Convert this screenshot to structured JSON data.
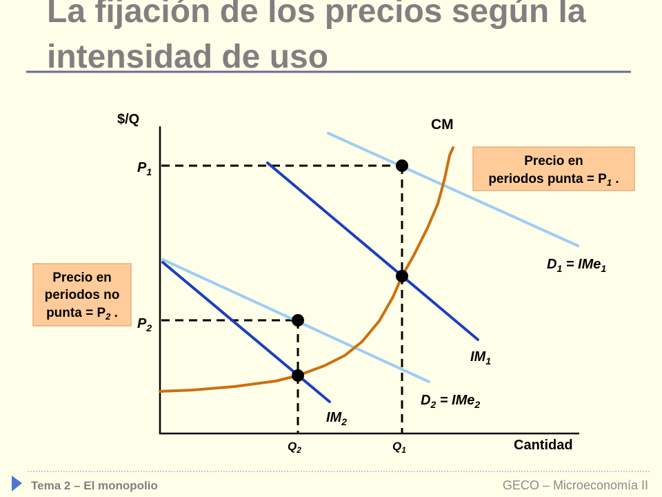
{
  "title": {
    "line1": "La fijación de los precios según la",
    "line2": "intensidad de uso"
  },
  "axes": {
    "y_label": "$/Q",
    "x_label": "Cantidad"
  },
  "prices": {
    "p1": {
      "base": "P",
      "sub": "1"
    },
    "p2": {
      "base": "P",
      "sub": "2"
    }
  },
  "quantities": {
    "q1": {
      "base": "Q",
      "sub": "1"
    },
    "q2": {
      "base": "Q",
      "sub": "2"
    }
  },
  "curves": {
    "cm": "CM",
    "d1": {
      "base": "D",
      "sub": "1",
      "rest": " = IMe",
      "rest_sub": "1"
    },
    "im1": {
      "base": "IM",
      "sub": "1"
    },
    "d2": {
      "base": "D",
      "sub": "2",
      "rest": " = IMe",
      "rest_sub": "2"
    },
    "im2": {
      "base": "IM",
      "sub": "2"
    }
  },
  "boxes": {
    "peak": {
      "line1": "Precio en",
      "line2": "periodos punta = P",
      "line2_sub": "1",
      "line2_end": " ."
    },
    "off_peak": {
      "line1": "Precio en",
      "line2": "periodos no",
      "line3": "punta = P",
      "line3_sub": "2",
      "line3_end": " ."
    }
  },
  "footer": {
    "left": "Tema 2 – El monopolio",
    "right": "GECO – Microeconomía II"
  },
  "colors": {
    "background": "#FFFFE9",
    "title": "#808080",
    "marginal_revenue": "#1B3FBF",
    "demand": "#9DCDF5",
    "marginal_cost": "#CC6F10",
    "callout": "#FFCC99"
  }
}
